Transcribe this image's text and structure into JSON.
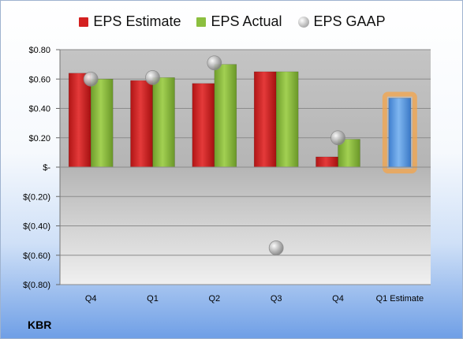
{
  "chart_data": {
    "type": "bar",
    "categories": [
      "Q4",
      "Q1",
      "Q2",
      "Q3",
      "Q4",
      "Q1 Estimate"
    ],
    "series": [
      {
        "name": "EPS Estimate",
        "values": [
          0.64,
          0.59,
          0.57,
          0.65,
          0.07,
          null
        ],
        "color": "#d42020"
      },
      {
        "name": "EPS Actual",
        "values": [
          0.6,
          0.61,
          0.7,
          0.65,
          0.19,
          null
        ],
        "color": "#8cbf3f"
      },
      {
        "name": "EPS GAAP",
        "values": [
          0.6,
          0.61,
          0.71,
          -0.55,
          0.2,
          null
        ],
        "color": "#b0b0b0"
      },
      {
        "name": "",
        "values": [
          null,
          null,
          null,
          null,
          null,
          0.47
        ],
        "color": "#5b9be0"
      }
    ],
    "ylim": [
      -0.8,
      0.8
    ],
    "yticks": [
      {
        "value": 0.8,
        "label": "$0.80"
      },
      {
        "value": 0.6,
        "label": "$0.60"
      },
      {
        "value": 0.4,
        "label": "$0.40"
      },
      {
        "value": 0.2,
        "label": "$0.20"
      },
      {
        "value": 0.0,
        "label": "$-"
      },
      {
        "value": -0.2,
        "label": "$(0.20)"
      },
      {
        "value": -0.4,
        "label": "$(0.40)"
      },
      {
        "value": -0.6,
        "label": "$(0.60)"
      },
      {
        "value": -0.8,
        "label": "$(0.80)"
      }
    ],
    "grid": true,
    "legend_position": "top",
    "highlight_color": "#f4a44a"
  },
  "footer": {
    "ticker": "KBR"
  }
}
